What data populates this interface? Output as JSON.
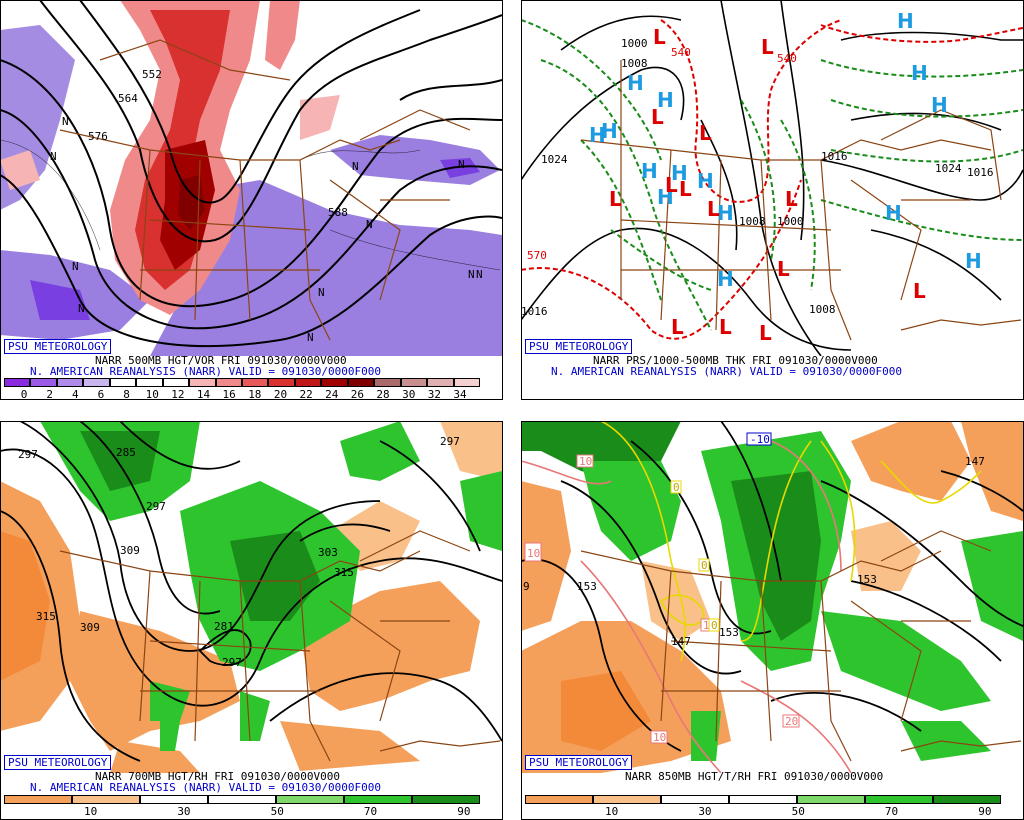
{
  "panels": {
    "p1": {
      "credit": "PSU METEOROLOGY",
      "title": "NARR 500MB HGT/VOR FRI 091030/0000V000",
      "subtitle": "N. AMERICAN REANALYSIS (NARR) VALID = 091030/0000F000",
      "colorbar": {
        "labels": [
          "0",
          "2",
          "4",
          "6",
          "8",
          "10",
          "12",
          "14",
          "16",
          "18",
          "20",
          "22",
          "24",
          "26",
          "28",
          "30",
          "32",
          "34"
        ],
        "colors": [
          "#8a2be2",
          "#9a5ae6",
          "#b08ae8",
          "#c9b6ee",
          "#ffffff",
          "#ffffff",
          "#ffffff",
          "#f6b4b4",
          "#f08a8a",
          "#e85a5a",
          "#d93030",
          "#c01818",
          "#a00000",
          "#800000",
          "#a86a6a",
          "#c98e8e",
          "#e0b0b0",
          "#f4d0d0"
        ]
      },
      "contour_labels": [
        "552",
        "564",
        "576",
        "588"
      ],
      "letters_n": "N"
    },
    "p2": {
      "credit": "PSU METEOROLOGY",
      "title": "NARR PRS/1000-500MB THK FRI 091030/0000V000",
      "subtitle": "N. AMERICAN REANALYSIS (NARR) VALID = 091030/0000F000",
      "contour_labels": [
        "1000",
        "1008",
        "1016",
        "1024",
        "1008",
        "1000",
        "1016",
        "1024",
        "1016",
        "1008",
        "540",
        "570",
        "540"
      ],
      "high": "H",
      "low": "L"
    },
    "p3": {
      "credit": "PSU METEOROLOGY",
      "title": "NARR 700MB HGT/RH FRI 091030/0000V000",
      "subtitle": "N. AMERICAN REANALYSIS (NARR) VALID = 091030/0000F000",
      "colorbar": {
        "labels": [
          "10",
          "30",
          "50",
          "70",
          "90"
        ],
        "colors": [
          "#f5a05a",
          "#f9c08a",
          "#ffffff",
          "#ffffff",
          "#7fd86a",
          "#2ec42e",
          "#1a8c1a"
        ]
      },
      "contour_labels": [
        "297",
        "285",
        "297",
        "309",
        "315",
        "309",
        "281",
        "297",
        "303",
        "315",
        "297"
      ]
    },
    "p4": {
      "credit": "PSU METEOROLOGY",
      "title": "NARR 850MB HGT/T/RH FRI 091030/0000V000",
      "colorbar": {
        "labels": [
          "10",
          "30",
          "50",
          "70",
          "90"
        ],
        "colors": [
          "#f5a05a",
          "#f9c08a",
          "#ffffff",
          "#ffffff",
          "#7fd86a",
          "#2ec42e",
          "#1a8c1a"
        ]
      },
      "contour_labels": [
        "147",
        "153",
        "153",
        "147",
        "153",
        "9"
      ],
      "temp_labels": [
        "-10",
        "10",
        "0",
        "0",
        "10",
        "20",
        "10",
        "10",
        "0"
      ]
    }
  },
  "colors": {
    "credit_blue": "#0000cc",
    "border_brown": "#8b4513",
    "thickness_red": "#dd0000",
    "thickness_green": "#1a8c1a",
    "high_blue": "#1e9be0",
    "low_red": "#dd0000"
  }
}
